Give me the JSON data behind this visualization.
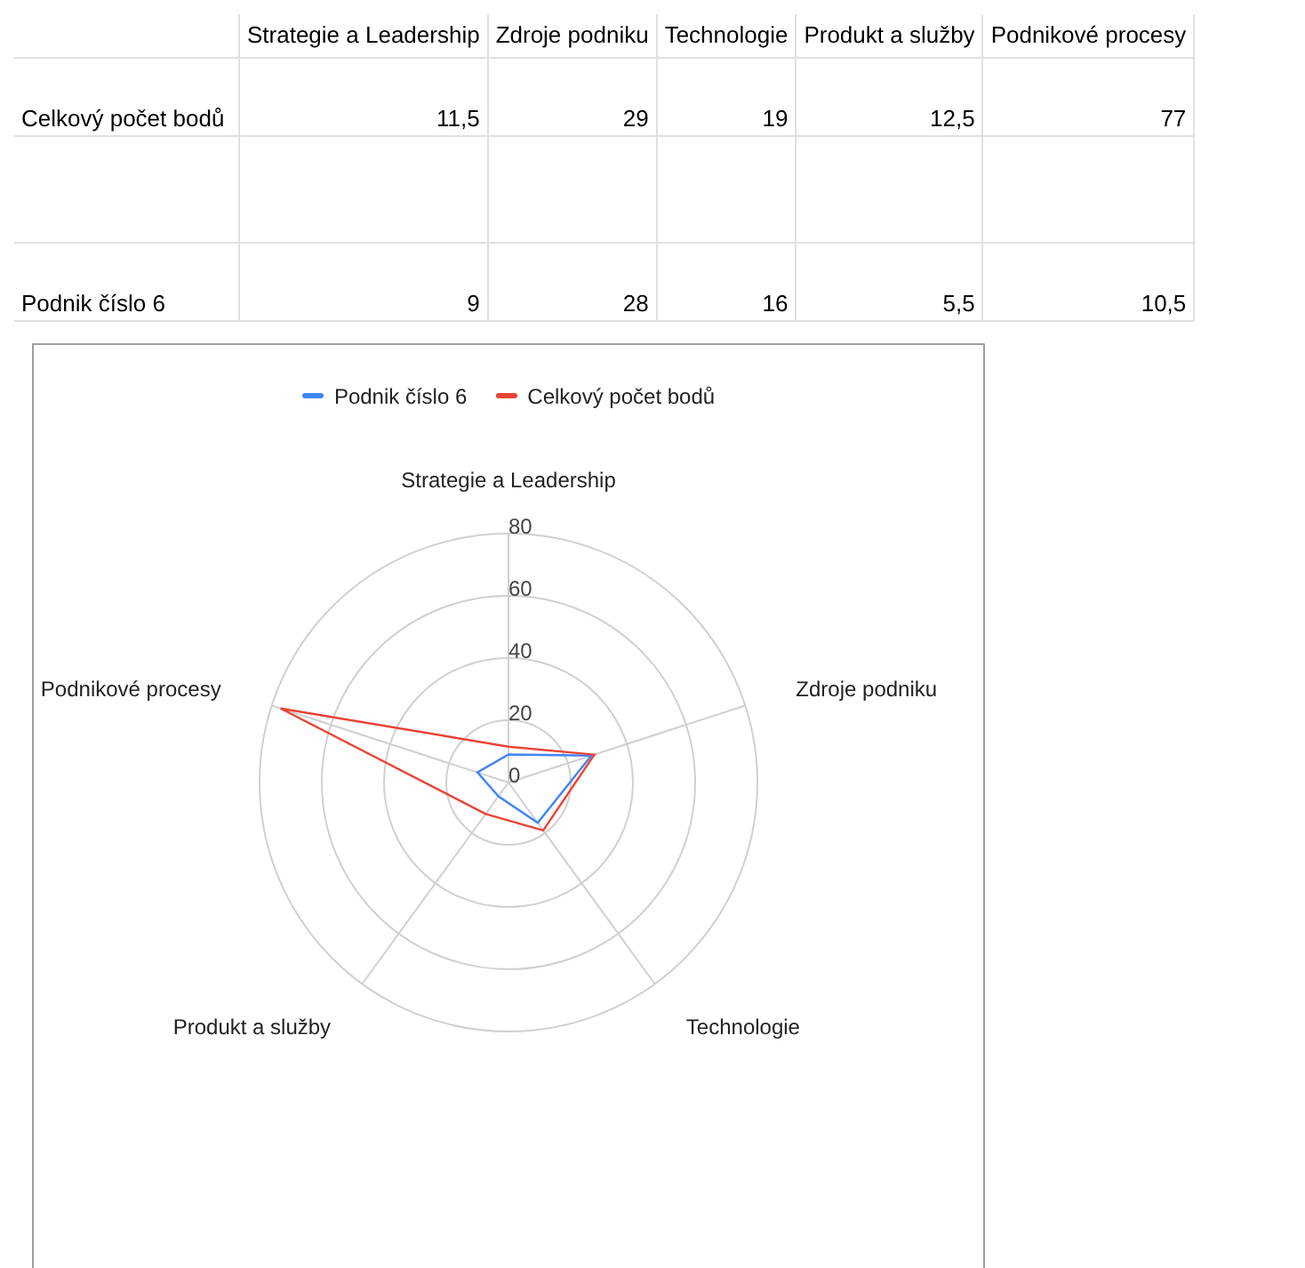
{
  "chart_data": [
    {
      "type": "other",
      "categories": [
        "Strategie a Leadership",
        "Zdroje podniku",
        "Technologie",
        "Produkt a služby",
        "Podnikové procesy"
      ],
      "series": [
        {
          "name": "Celkový počet bodů",
          "values": [
            11.5,
            29,
            19,
            12.5,
            77
          ],
          "value_labels": [
            "11,5",
            "29",
            "19",
            "12,5",
            "77"
          ]
        },
        {
          "name": "Podnik číslo 6",
          "values": [
            9,
            28,
            16,
            5.5,
            10.5
          ],
          "value_labels": [
            "9",
            "28",
            "16",
            "5,5",
            "10,5"
          ]
        }
      ]
    },
    {
      "type": "radar",
      "categories": [
        "Strategie a Leadership",
        "Zdroje podniku",
        "Technologie",
        "Produkt a služby",
        "Podnikové procesy"
      ],
      "series": [
        {
          "name": "Podnik číslo 6",
          "color": "#4285f4",
          "values": [
            9,
            28,
            16,
            5.5,
            10.5
          ]
        },
        {
          "name": "Celkový počet bodů",
          "color": "#ea4335",
          "values": [
            11.5,
            29,
            19,
            12.5,
            77
          ]
        }
      ],
      "ylim": [
        0,
        80
      ],
      "yticks": [
        0,
        20,
        40,
        60,
        80
      ],
      "grid": true,
      "legend": "top",
      "marker": "none",
      "line_style": "solid"
    }
  ]
}
